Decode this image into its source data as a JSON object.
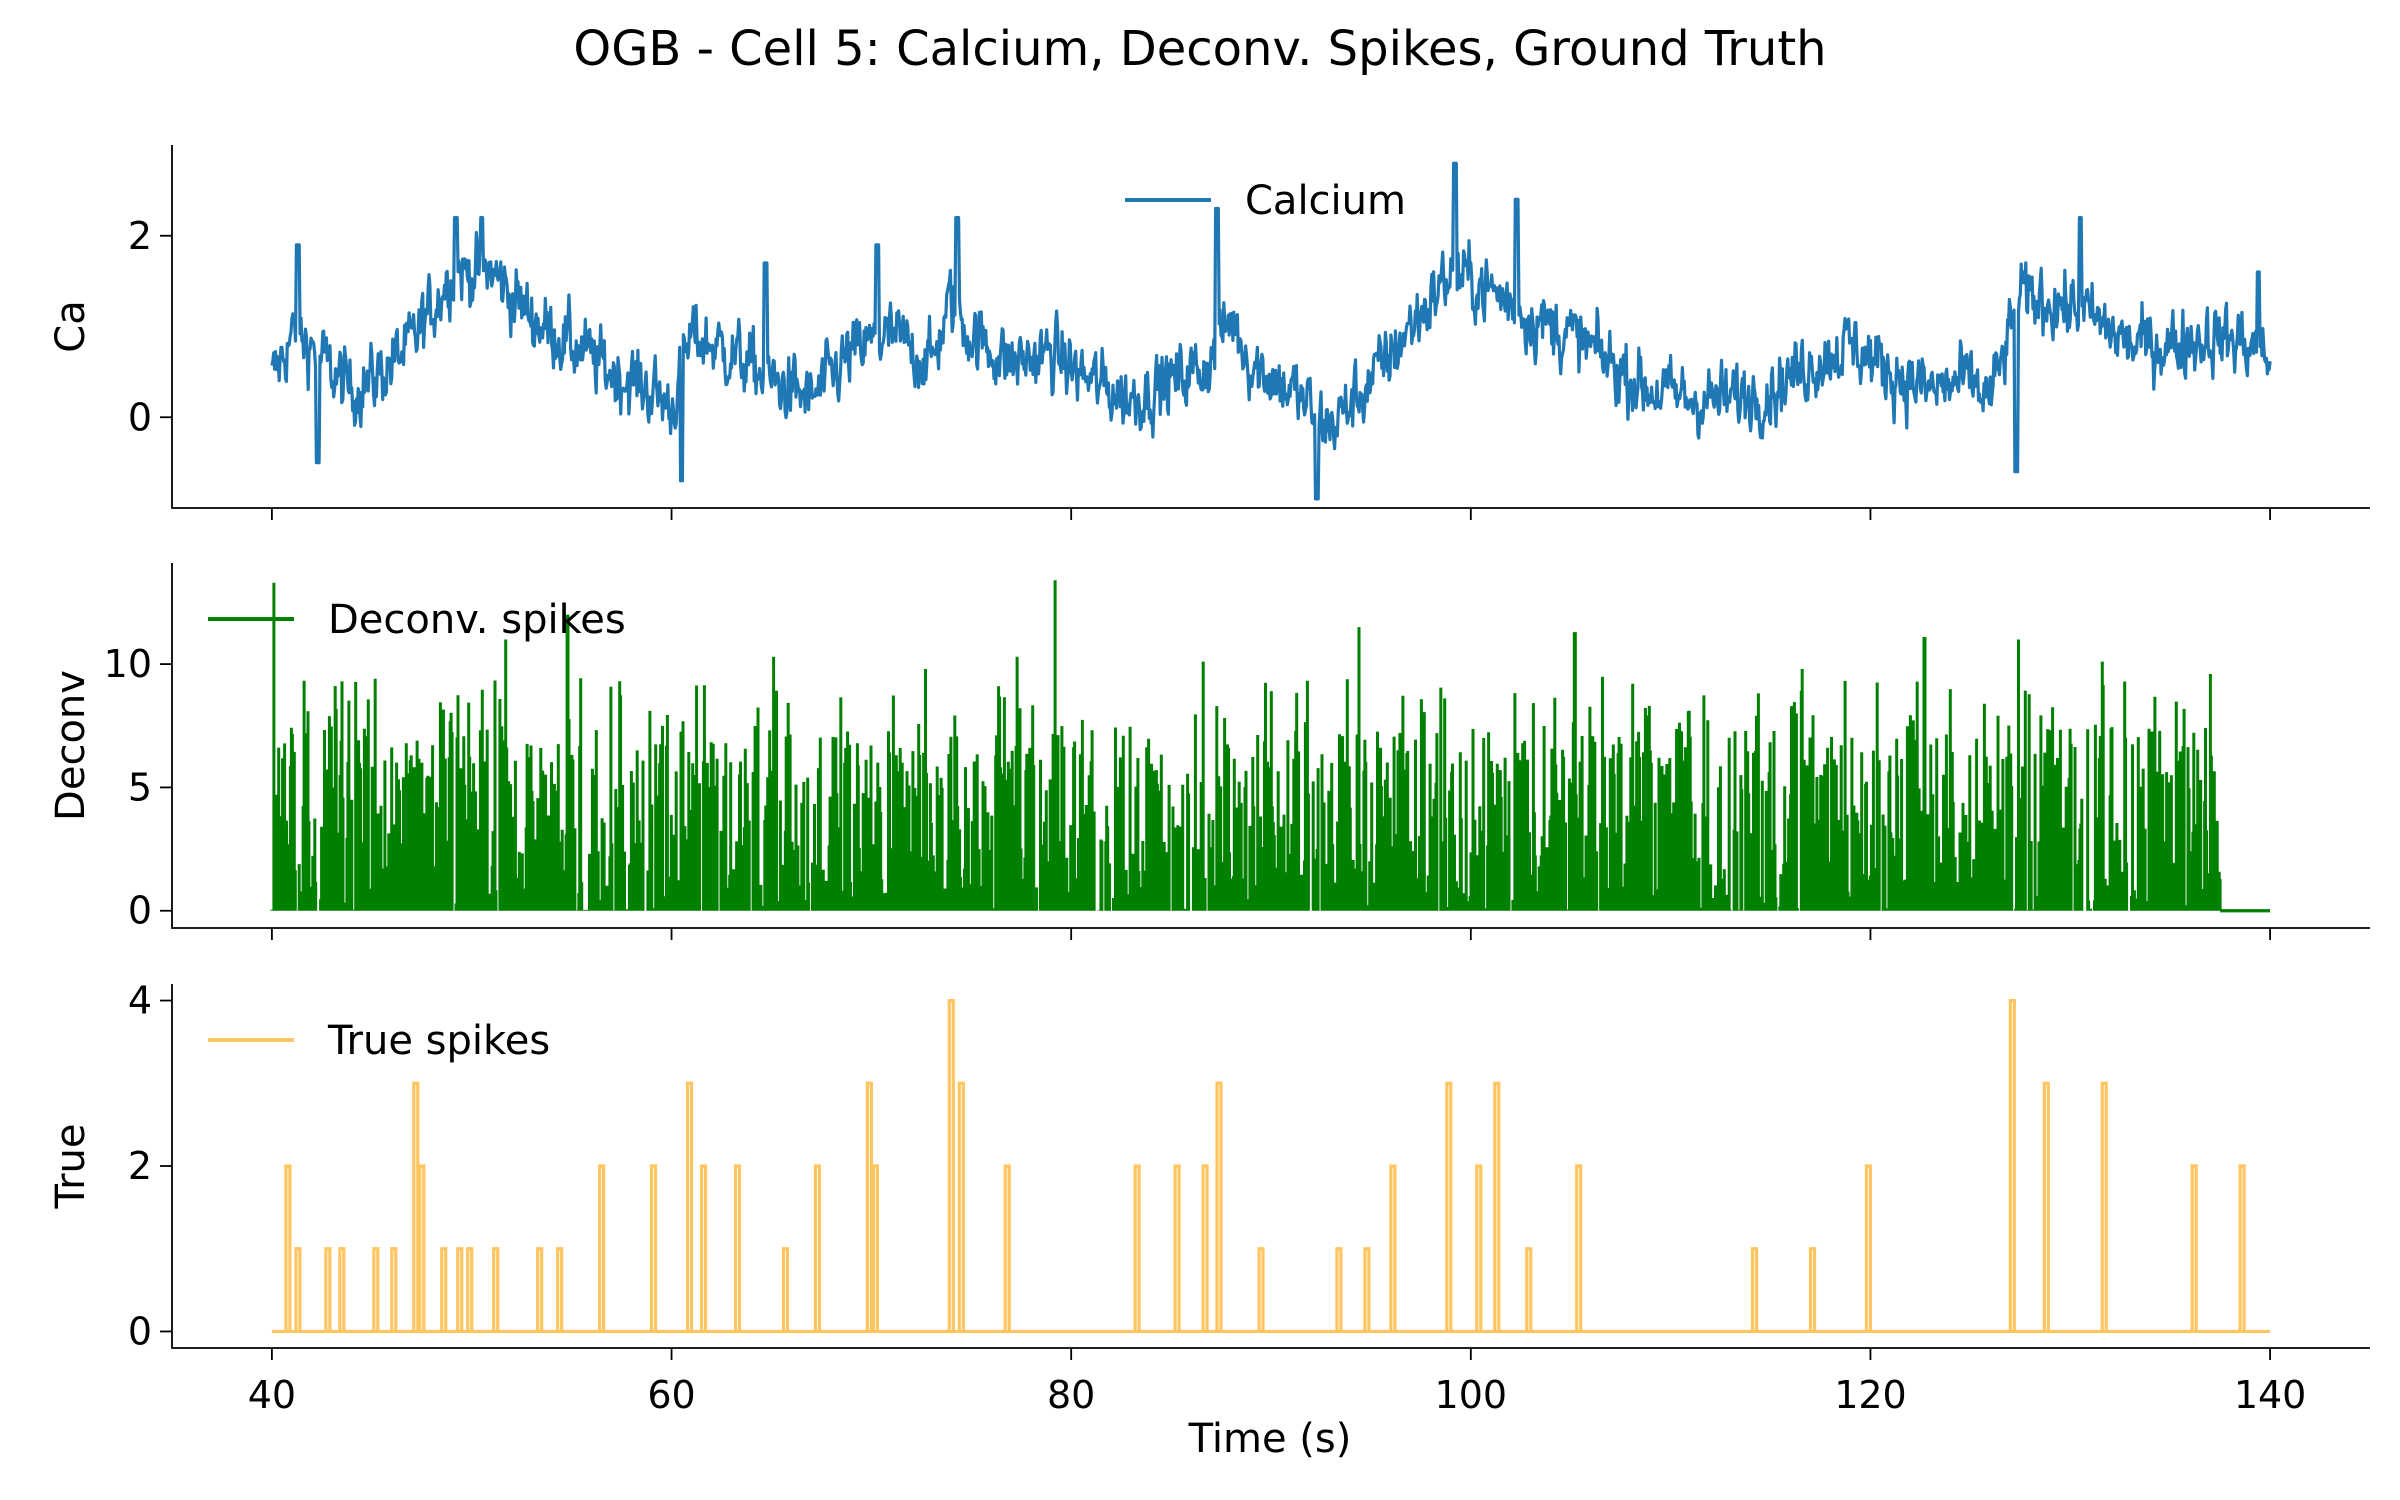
{
  "chart_data": {
    "type": "line",
    "title": "OGB - Cell 5: Calcium, Deconv. Spikes, Ground Truth",
    "xlabel": "Time (s)",
    "xlim": [
      35,
      145
    ],
    "xticks": [
      40,
      60,
      80,
      100,
      120,
      140
    ],
    "x_range": [
      40,
      140
    ],
    "panels": [
      {
        "name": "calcium",
        "ylabel": "Ca",
        "ylim": [
          -1,
          3
        ],
        "yticks": [
          0,
          2
        ],
        "legend": "Calcium",
        "legend_loc": "upper center",
        "color": "#1f77b4",
        "envelope": [
          [
            40,
            0.4
          ],
          [
            41,
            0.9
          ],
          [
            42,
            0.8
          ],
          [
            43,
            0.5
          ],
          [
            44,
            0.3
          ],
          [
            45,
            0.4
          ],
          [
            47,
            0.8
          ],
          [
            49,
            1.6
          ],
          [
            51,
            1.6
          ],
          [
            53,
            1.1
          ],
          [
            55,
            0.8
          ],
          [
            57,
            0.5
          ],
          [
            59,
            0.3
          ],
          [
            60,
            0.1
          ],
          [
            61,
            0.9
          ],
          [
            63,
            0.7
          ],
          [
            65,
            0.4
          ],
          [
            67,
            0.2
          ],
          [
            69,
            0.7
          ],
          [
            71,
            0.9
          ],
          [
            73,
            0.6
          ],
          [
            74,
            1.3
          ],
          [
            75,
            0.9
          ],
          [
            77,
            0.6
          ],
          [
            79,
            0.7
          ],
          [
            81,
            0.4
          ],
          [
            83,
            0.2
          ],
          [
            85,
            0.4
          ],
          [
            87,
            0.6
          ],
          [
            88,
            1.1
          ],
          [
            89,
            0.6
          ],
          [
            91,
            0.3
          ],
          [
            93,
            -0.1
          ],
          [
            95,
            0.4
          ],
          [
            97,
            1.0
          ],
          [
            99,
            1.6
          ],
          [
            101,
            1.4
          ],
          [
            103,
            1.1
          ],
          [
            105,
            0.9
          ],
          [
            107,
            0.6
          ],
          [
            109,
            0.3
          ],
          [
            111,
            0.2
          ],
          [
            113,
            0.2
          ],
          [
            115,
            0.3
          ],
          [
            117,
            0.6
          ],
          [
            119,
            0.8
          ],
          [
            121,
            0.5
          ],
          [
            123,
            0.3
          ],
          [
            125,
            0.4
          ],
          [
            126,
            0.2
          ],
          [
            127.5,
            1.3
          ],
          [
            129,
            1.3
          ],
          [
            131,
            1.1
          ],
          [
            133,
            0.8
          ],
          [
            135,
            0.8
          ],
          [
            137,
            0.9
          ],
          [
            139,
            0.8
          ],
          [
            140,
            0.6
          ]
        ],
        "peaks": [
          [
            41.3,
            1.9
          ],
          [
            42.3,
            -0.5
          ],
          [
            49.2,
            2.2
          ],
          [
            50.5,
            2.2
          ],
          [
            60.5,
            -0.7
          ],
          [
            64.7,
            1.7
          ],
          [
            70.3,
            1.9
          ],
          [
            74.3,
            2.2
          ],
          [
            87.3,
            2.3
          ],
          [
            92.3,
            -0.9
          ],
          [
            99.2,
            2.8
          ],
          [
            102.3,
            2.4
          ],
          [
            127.3,
            -0.6
          ],
          [
            130.5,
            2.2
          ],
          [
            139.4,
            1.6
          ]
        ]
      },
      {
        "name": "deconv",
        "ylabel": "Deconv",
        "ylim": [
          -0.7,
          14.1
        ],
        "yticks": [
          0,
          5,
          10
        ],
        "legend": "Deconv. spikes",
        "legend_loc": "upper left",
        "color": "#008000",
        "active_until": 137.5,
        "peaks": [
          [
            40.1,
            13.3
          ],
          [
            43.5,
            9.3
          ],
          [
            51.7,
            11.0
          ],
          [
            54.8,
            12.0
          ],
          [
            65.1,
            10.3
          ],
          [
            72.7,
            9.8
          ],
          [
            77.3,
            10.3
          ],
          [
            79.2,
            13.4
          ],
          [
            86.6,
            10.1
          ],
          [
            94.4,
            11.5
          ],
          [
            105.2,
            11.3
          ],
          [
            116.6,
            9.8
          ],
          [
            122.7,
            11.1
          ],
          [
            127.4,
            11.0
          ],
          [
            131.6,
            10.1
          ],
          [
            137.0,
            9.6
          ]
        ]
      },
      {
        "name": "true",
        "ylabel": "True",
        "ylim": [
          -0.2,
          4.2
        ],
        "yticks": [
          0,
          2,
          4
        ],
        "legend": "True spikes",
        "legend_loc": "upper left",
        "color": "#ffc561",
        "spikes": [
          [
            40.8,
            2
          ],
          [
            41.3,
            1
          ],
          [
            42.8,
            1
          ],
          [
            43.5,
            1
          ],
          [
            45.2,
            1
          ],
          [
            46.1,
            1
          ],
          [
            47.2,
            3
          ],
          [
            47.5,
            2
          ],
          [
            48.6,
            1
          ],
          [
            49.4,
            1
          ],
          [
            49.9,
            1
          ],
          [
            51.2,
            1
          ],
          [
            53.4,
            1
          ],
          [
            54.4,
            1
          ],
          [
            56.5,
            2
          ],
          [
            59.1,
            2
          ],
          [
            60.9,
            3
          ],
          [
            61.6,
            2
          ],
          [
            63.3,
            2
          ],
          [
            65.7,
            1
          ],
          [
            67.3,
            2
          ],
          [
            69.9,
            3
          ],
          [
            70.2,
            2
          ],
          [
            74.0,
            4
          ],
          [
            74.5,
            3
          ],
          [
            76.8,
            2
          ],
          [
            83.3,
            2
          ],
          [
            85.3,
            2
          ],
          [
            86.7,
            2
          ],
          [
            87.4,
            3
          ],
          [
            89.5,
            1
          ],
          [
            93.4,
            1
          ],
          [
            94.8,
            1
          ],
          [
            96.1,
            2
          ],
          [
            98.9,
            3
          ],
          [
            100.4,
            2
          ],
          [
            101.3,
            3
          ],
          [
            102.9,
            1
          ],
          [
            105.4,
            2
          ],
          [
            114.2,
            1
          ],
          [
            117.1,
            1
          ],
          [
            119.9,
            2
          ],
          [
            127.1,
            4
          ],
          [
            128.8,
            3
          ],
          [
            131.7,
            3
          ],
          [
            136.2,
            2
          ],
          [
            138.6,
            2
          ]
        ]
      }
    ]
  }
}
